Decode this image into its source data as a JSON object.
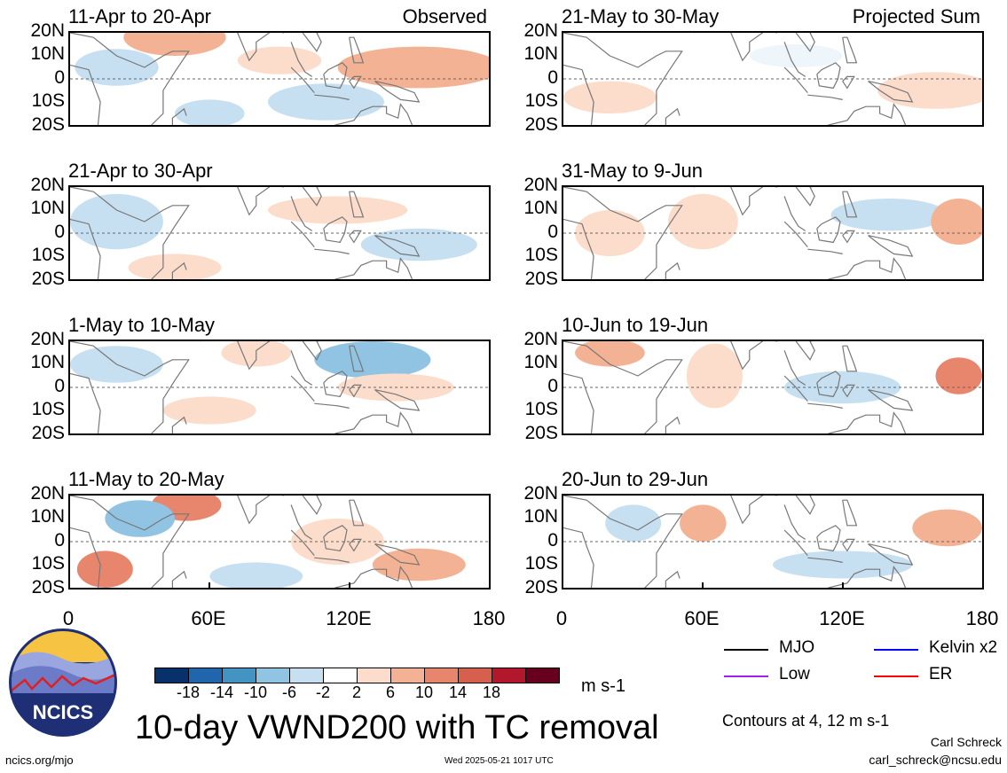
{
  "map_data": {
    "panels": [
      {
        "period": "11-Apr to 20-Apr",
        "tag": "Observed",
        "column": 0,
        "row": 0,
        "blobs": [
          {
            "lon": 45,
            "lat": 18,
            "rx": 22,
            "ry": 8,
            "color": "#f4b294"
          },
          {
            "lon": 150,
            "lat": 5,
            "rx": 35,
            "ry": 9,
            "color": "#f4b294"
          },
          {
            "lon": 90,
            "lat": 8,
            "rx": 18,
            "ry": 6,
            "color": "#fcdccb"
          },
          {
            "lon": 20,
            "lat": 5,
            "rx": 18,
            "ry": 8,
            "color": "#c7e0f1"
          },
          {
            "lon": 110,
            "lat": -10,
            "rx": 25,
            "ry": 8,
            "color": "#c7e0f1"
          },
          {
            "lon": 60,
            "lat": -15,
            "rx": 15,
            "ry": 6,
            "color": "#c7e0f1"
          }
        ]
      },
      {
        "period": "21-Apr to 30-Apr",
        "tag": "",
        "column": 0,
        "row": 1,
        "blobs": [
          {
            "lon": 20,
            "lat": 5,
            "rx": 20,
            "ry": 12,
            "color": "#c7e0f1"
          },
          {
            "lon": 115,
            "lat": 10,
            "rx": 30,
            "ry": 6,
            "color": "#fcdccb"
          },
          {
            "lon": 150,
            "lat": -5,
            "rx": 25,
            "ry": 7,
            "color": "#c7e0f1"
          },
          {
            "lon": 45,
            "lat": -15,
            "rx": 20,
            "ry": 6,
            "color": "#fcdccb"
          }
        ]
      },
      {
        "period": "1-May to 10-May",
        "tag": "",
        "column": 0,
        "row": 2,
        "blobs": [
          {
            "lon": 130,
            "lat": 12,
            "rx": 25,
            "ry": 8,
            "color": "#91c3e3"
          },
          {
            "lon": 80,
            "lat": 15,
            "rx": 15,
            "ry": 6,
            "color": "#fcdccb"
          },
          {
            "lon": 140,
            "lat": 0,
            "rx": 25,
            "ry": 6,
            "color": "#fcdccb"
          },
          {
            "lon": 20,
            "lat": 10,
            "rx": 20,
            "ry": 8,
            "color": "#c7e0f1"
          },
          {
            "lon": 60,
            "lat": -10,
            "rx": 20,
            "ry": 6,
            "color": "#fcdccb"
          }
        ]
      },
      {
        "period": "11-May to 20-May",
        "tag": "",
        "column": 0,
        "row": 3,
        "blobs": [
          {
            "lon": 50,
            "lat": 16,
            "rx": 15,
            "ry": 7,
            "color": "#e8866d"
          },
          {
            "lon": 15,
            "lat": -12,
            "rx": 12,
            "ry": 8,
            "color": "#e8866d"
          },
          {
            "lon": 30,
            "lat": 10,
            "rx": 15,
            "ry": 8,
            "color": "#91c3e3"
          },
          {
            "lon": 115,
            "lat": 0,
            "rx": 20,
            "ry": 10,
            "color": "#fcdccb"
          },
          {
            "lon": 150,
            "lat": -10,
            "rx": 20,
            "ry": 7,
            "color": "#f4b294"
          },
          {
            "lon": 80,
            "lat": -15,
            "rx": 20,
            "ry": 6,
            "color": "#c7e0f1"
          }
        ]
      },
      {
        "period": "21-May to 30-May",
        "tag": "Projected Sum",
        "column": 1,
        "row": 0,
        "blobs": [
          {
            "lon": 160,
            "lat": -5,
            "rx": 25,
            "ry": 8,
            "color": "#fcdccb"
          },
          {
            "lon": 20,
            "lat": -8,
            "rx": 20,
            "ry": 7,
            "color": "#fcdccb"
          },
          {
            "lon": 100,
            "lat": 10,
            "rx": 20,
            "ry": 5,
            "color": "#eef6fb"
          }
        ]
      },
      {
        "period": "31-May to 9-Jun",
        "tag": "",
        "column": 1,
        "row": 1,
        "blobs": [
          {
            "lon": 60,
            "lat": 5,
            "rx": 15,
            "ry": 12,
            "color": "#fcdccb"
          },
          {
            "lon": 140,
            "lat": 8,
            "rx": 25,
            "ry": 7,
            "color": "#c7e0f1"
          },
          {
            "lon": 170,
            "lat": 5,
            "rx": 12,
            "ry": 10,
            "color": "#f4b294"
          },
          {
            "lon": 20,
            "lat": 0,
            "rx": 15,
            "ry": 10,
            "color": "#fcdccb"
          }
        ]
      },
      {
        "period": "10-Jun to 19-Jun",
        "tag": "",
        "column": 1,
        "row": 2,
        "blobs": [
          {
            "lon": 65,
            "lat": 5,
            "rx": 12,
            "ry": 14,
            "color": "#fcdccb"
          },
          {
            "lon": 170,
            "lat": 5,
            "rx": 10,
            "ry": 8,
            "color": "#e8866d"
          },
          {
            "lon": 20,
            "lat": 15,
            "rx": 15,
            "ry": 6,
            "color": "#f4b294"
          },
          {
            "lon": 120,
            "lat": 0,
            "rx": 25,
            "ry": 7,
            "color": "#c7e0f1"
          }
        ]
      },
      {
        "period": "20-Jun to 29-Jun",
        "tag": "",
        "column": 1,
        "row": 3,
        "blobs": [
          {
            "lon": 60,
            "lat": 8,
            "rx": 10,
            "ry": 8,
            "color": "#f4b294"
          },
          {
            "lon": 165,
            "lat": 6,
            "rx": 15,
            "ry": 8,
            "color": "#f4b294"
          },
          {
            "lon": 120,
            "lat": -10,
            "rx": 30,
            "ry": 6,
            "color": "#c7e0f1"
          },
          {
            "lon": 30,
            "lat": 8,
            "rx": 12,
            "ry": 8,
            "color": "#c7e0f1"
          }
        ]
      }
    ],
    "lat_labels": [
      "20N",
      "10N",
      "0",
      "10S",
      "20S"
    ],
    "lon_labels": [
      "0",
      "60E",
      "120E",
      "180"
    ],
    "lon_range": [
      0,
      180
    ],
    "lat_range": [
      -20,
      20
    ]
  },
  "colorbar": {
    "colors": [
      "#08306b",
      "#2166ac",
      "#4393c3",
      "#91c3e3",
      "#c7e0f1",
      "#ffffff",
      "#fcdccb",
      "#f4b294",
      "#e8866d",
      "#d6604d",
      "#b2182b",
      "#67001f"
    ],
    "labels": [
      "-18",
      "-14",
      "-10",
      "-6",
      "-2",
      "2",
      "6",
      "10",
      "14",
      "18"
    ],
    "unit": "m s-1"
  },
  "legend": [
    {
      "label": "MJO",
      "color": "#000000"
    },
    {
      "label": "Kelvin x2",
      "color": "#0000ff"
    },
    {
      "label": "Low",
      "color": "#a020f0"
    },
    {
      "label": "ER",
      "color": "#ff0000"
    }
  ],
  "contour_note": "Contours at 4, 12 m s-1",
  "title": "10-day VWND200 with TC removal",
  "author": "Carl Schreck",
  "email": "carl_schreck@ncsu.edu",
  "url": "ncics.org/mjo",
  "timestamp": "Wed 2025-05-21 1017 UTC",
  "logo_text": "NCICS",
  "colors": {
    "land_outline": "#777777",
    "equator_line": "#666666"
  }
}
